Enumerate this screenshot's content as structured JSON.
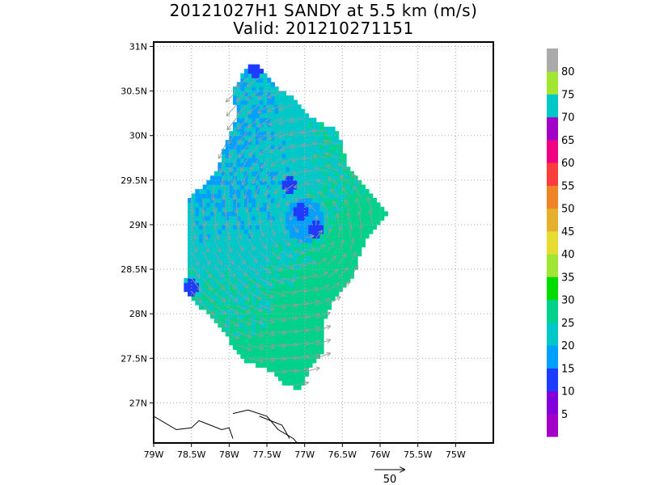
{
  "title": {
    "line1": "20121027H1 SANDY at 5.5 km (m/s)",
    "line2": "Valid: 201210271151"
  },
  "chart_data": {
    "type": "heatmap",
    "title": "20121027H1 SANDY at 5.5 km (m/s)",
    "subtitle": "Valid: 201210271151",
    "xlabel": "",
    "ylabel": "",
    "xlim": [
      -79.0,
      -74.5
    ],
    "ylim": [
      26.55,
      31.05
    ],
    "grid": true,
    "x_ticks": [
      {
        "value": -79.0,
        "label": "79W"
      },
      {
        "value": -78.5,
        "label": "78.5W"
      },
      {
        "value": -78.0,
        "label": "78W"
      },
      {
        "value": -77.5,
        "label": "77.5W"
      },
      {
        "value": -77.0,
        "label": "77W"
      },
      {
        "value": -76.5,
        "label": "76.5W"
      },
      {
        "value": -76.0,
        "label": "76W"
      },
      {
        "value": -75.5,
        "label": "75.5W"
      },
      {
        "value": -75.0,
        "label": "75W"
      }
    ],
    "y_ticks": [
      {
        "value": 27.0,
        "label": "27N"
      },
      {
        "value": 27.5,
        "label": "27.5N"
      },
      {
        "value": 28.0,
        "label": "28N"
      },
      {
        "value": 28.5,
        "label": "28.5N"
      },
      {
        "value": 29.0,
        "label": "29N"
      },
      {
        "value": 29.5,
        "label": "29.5N"
      },
      {
        "value": 30.0,
        "label": "30N"
      },
      {
        "value": 30.5,
        "label": "30.5N"
      },
      {
        "value": 31.0,
        "label": "31N"
      }
    ],
    "storm_center": {
      "lon": -77.0,
      "lat": 29.05
    },
    "data_region": {
      "outline": [
        [
          -77.7,
          30.85
        ],
        [
          -77.45,
          30.6
        ],
        [
          -77.2,
          30.45
        ],
        [
          -76.9,
          30.2
        ],
        [
          -76.55,
          30.05
        ],
        [
          -76.45,
          29.7
        ],
        [
          -76.15,
          29.35
        ],
        [
          -75.9,
          29.1
        ],
        [
          -76.15,
          28.9
        ],
        [
          -76.3,
          28.6
        ],
        [
          -76.35,
          28.4
        ],
        [
          -76.6,
          28.2
        ],
        [
          -76.75,
          27.9
        ],
        [
          -76.75,
          27.6
        ],
        [
          -76.95,
          27.35
        ],
        [
          -77.05,
          27.15
        ],
        [
          -77.25,
          27.2
        ],
        [
          -77.45,
          27.35
        ],
        [
          -77.75,
          27.45
        ],
        [
          -77.95,
          27.6
        ],
        [
          -78.1,
          27.85
        ],
        [
          -78.25,
          27.95
        ],
        [
          -78.45,
          28.15
        ],
        [
          -78.6,
          28.25
        ],
        [
          -78.55,
          28.55
        ],
        [
          -78.55,
          29.0
        ],
        [
          -78.55,
          29.3
        ],
        [
          -78.2,
          29.55
        ],
        [
          -78.05,
          29.9
        ],
        [
          -77.9,
          30.2
        ],
        [
          -77.95,
          30.5
        ],
        [
          -77.85,
          30.65
        ]
      ],
      "wind_speed_model": {
        "background": 20,
        "east_south_max": 28,
        "calm_eye_center_min": 14
      },
      "low_wind_patches": [
        {
          "lon": -77.65,
          "lat": 30.75,
          "value": 12
        },
        {
          "lon": -77.05,
          "lat": 29.15,
          "value": 13
        },
        {
          "lon": -76.85,
          "lat": 28.95,
          "value": 12
        },
        {
          "lon": -78.5,
          "lat": 28.3,
          "value": 12
        },
        {
          "lon": -77.2,
          "lat": 29.45,
          "value": 14
        }
      ]
    },
    "colorbar": {
      "labels": [
        "5",
        "10",
        "15",
        "20",
        "25",
        "30",
        "35",
        "40",
        "45",
        "50",
        "55",
        "60",
        "65",
        "70",
        "75",
        "80"
      ],
      "colors": [
        "#a000c8",
        "#8200dc",
        "#1e3cff",
        "#00a0ff",
        "#00c8c8",
        "#00d28c",
        "#00dc00",
        "#a0e632",
        "#e6dc32",
        "#e6af2d",
        "#f08228",
        "#fa3c3c",
        "#f00082",
        "#a000c8",
        "#00c8c8",
        "#a0e632",
        "#aaaaaa"
      ],
      "range": [
        0,
        85
      ]
    },
    "reference_vector": {
      "label": "50",
      "value": 50,
      "units": "m/s"
    },
    "coastline": [
      [
        [
          -79.0,
          26.85
        ],
        [
          -78.7,
          26.7
        ],
        [
          -78.5,
          26.72
        ],
        [
          -78.4,
          26.8
        ],
        [
          -78.1,
          26.7
        ],
        [
          -78.0,
          26.72
        ],
        [
          -77.95,
          26.6
        ]
      ],
      [
        [
          -77.95,
          26.88
        ],
        [
          -77.75,
          26.92
        ],
        [
          -77.5,
          26.85
        ],
        [
          -77.35,
          26.7
        ],
        [
          -77.15,
          26.6
        ],
        [
          -77.05,
          26.5
        ]
      ],
      [
        [
          -77.6,
          26.85
        ],
        [
          -77.3,
          26.75
        ],
        [
          -77.2,
          26.6
        ]
      ]
    ],
    "legend": "right"
  }
}
